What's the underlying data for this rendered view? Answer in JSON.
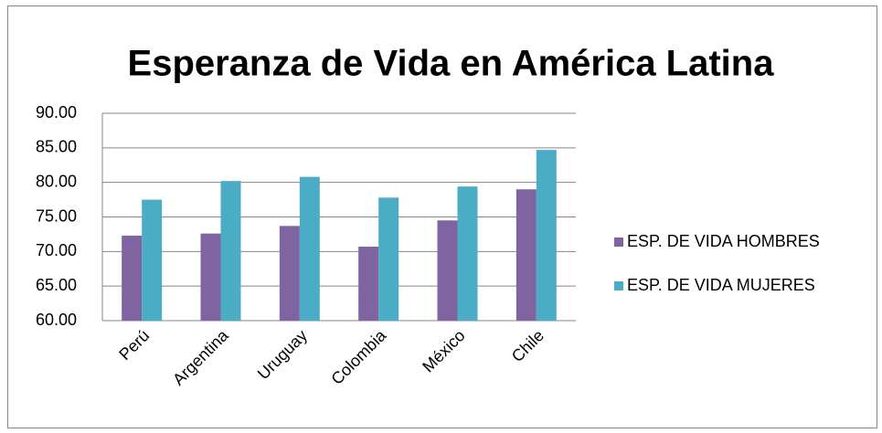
{
  "chart_data": {
    "type": "bar",
    "title": "Esperanza de Vida en América Latina",
    "categories": [
      "Perú",
      "Argentina",
      "Uruguay",
      "Colombia",
      "México",
      "Chile"
    ],
    "series": [
      {
        "name": "ESP. DE VIDA HOMBRES",
        "color": "#8064a2",
        "values": [
          72.3,
          72.6,
          73.7,
          70.7,
          74.5,
          79.0
        ]
      },
      {
        "name": "ESP. DE VIDA MUJERES",
        "color": "#4bacc6",
        "values": [
          77.5,
          80.2,
          80.8,
          77.8,
          79.4,
          84.7
        ]
      }
    ],
    "ylim": [
      60,
      90
    ],
    "yticks": [
      {
        "value": 60,
        "label": "60.00"
      },
      {
        "value": 65,
        "label": "65.00"
      },
      {
        "value": 70,
        "label": "70.00"
      },
      {
        "value": 75,
        "label": "75.00"
      },
      {
        "value": 80,
        "label": "80.00"
      },
      {
        "value": 85,
        "label": "85.00"
      },
      {
        "value": 90,
        "label": "90.00"
      }
    ],
    "grid": true,
    "legend": "right"
  }
}
